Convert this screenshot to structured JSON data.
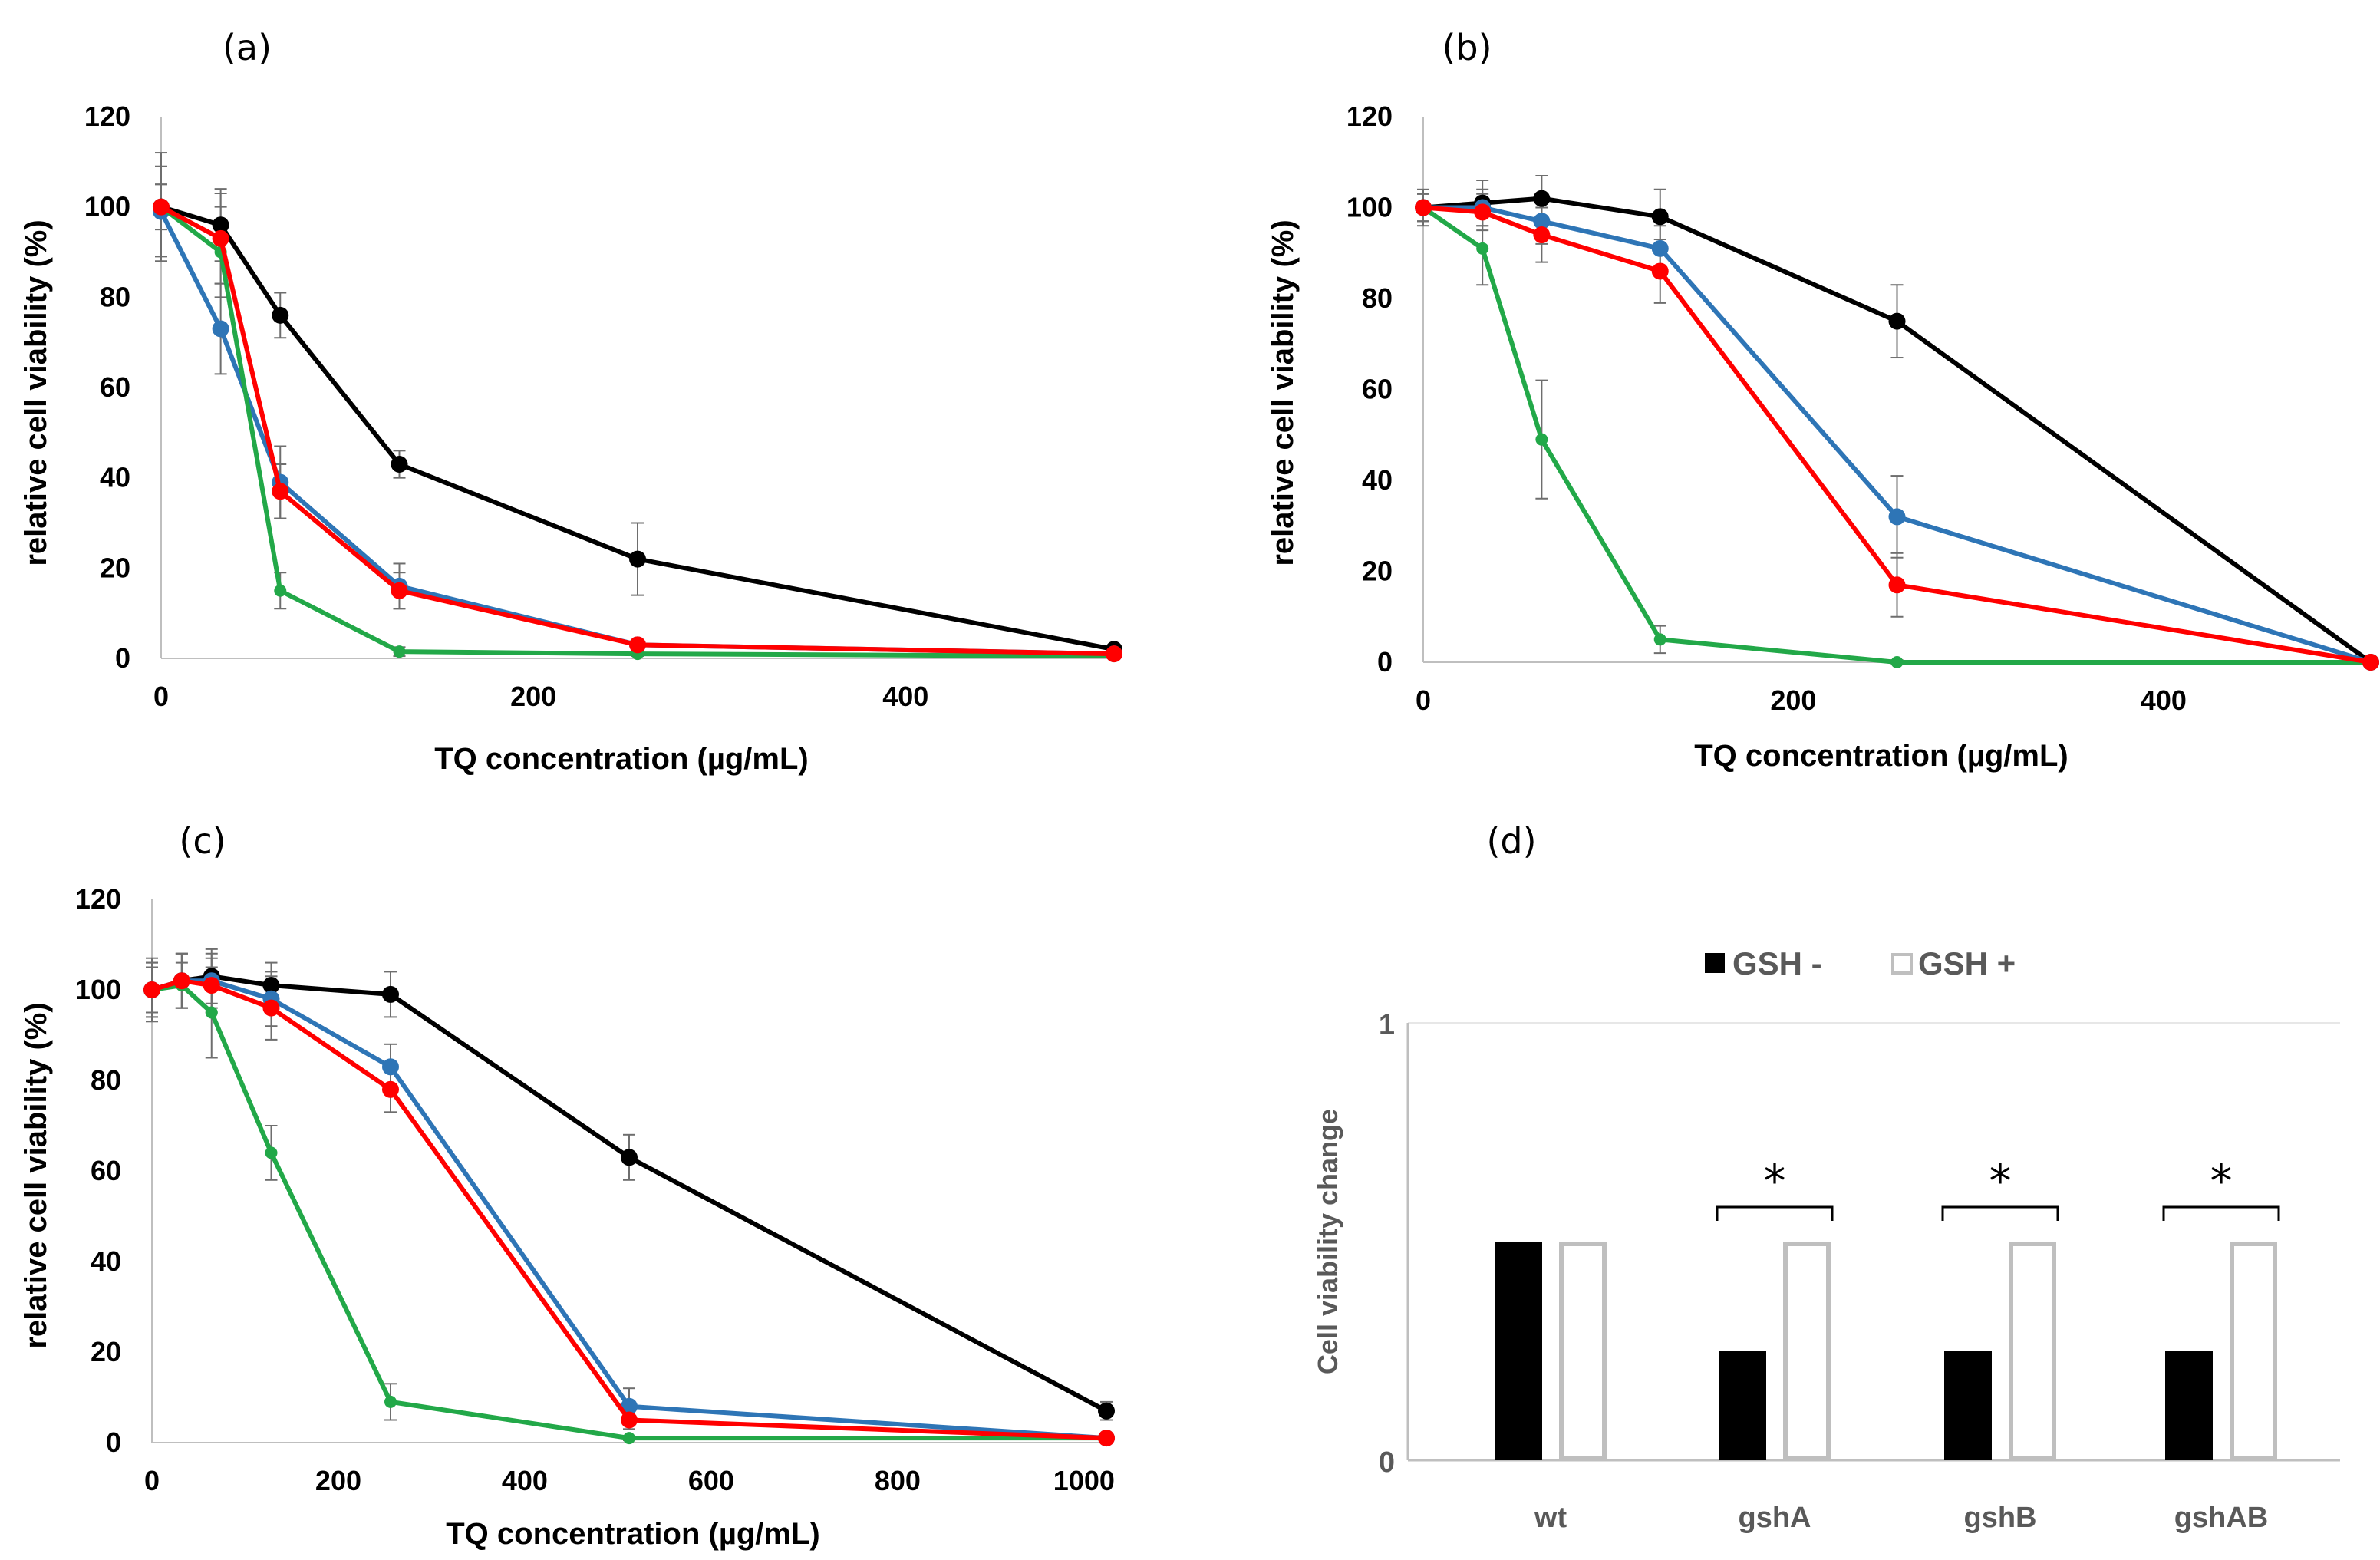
{
  "chart_data": [
    {
      "type": "line",
      "panel": "(a)",
      "title": "",
      "xlabel": "TQ concentration  (µg/mL)",
      "ylabel": "relative cell viability (%)",
      "xlim": [
        0,
        512
      ],
      "ylim": [
        0,
        120
      ],
      "xticks": [
        0,
        200,
        400
      ],
      "yticks": [
        0,
        20,
        40,
        60,
        80,
        100,
        120
      ],
      "grid": false,
      "series": [
        {
          "name": "black",
          "color": "#000000",
          "x": [
            0,
            32,
            64,
            128,
            256,
            512
          ],
          "values": [
            100,
            96,
            76,
            43,
            22,
            2
          ],
          "err": [
            12,
            8,
            5,
            3,
            8,
            1
          ]
        },
        {
          "name": "blue",
          "color": "#2E75B6",
          "x": [
            0,
            32,
            64,
            128,
            256,
            512
          ],
          "values": [
            99,
            73,
            39,
            16,
            3,
            1
          ],
          "err": [
            10,
            10,
            8,
            5,
            1,
            1
          ]
        },
        {
          "name": "green",
          "color": "#22A848",
          "x": [
            0,
            32,
            64,
            128,
            256,
            512
          ],
          "values": [
            100,
            90,
            15,
            1.5,
            1,
            0.5
          ],
          "err": [
            5,
            10,
            4,
            1,
            0.5,
            0.5
          ]
        },
        {
          "name": "red",
          "color": "#FF0000",
          "x": [
            0,
            32,
            64,
            128,
            256,
            512
          ],
          "values": [
            100,
            93,
            37,
            15,
            3,
            1
          ],
          "err": [
            5,
            10,
            6,
            4,
            1,
            1
          ]
        }
      ]
    },
    {
      "type": "line",
      "panel": "(b)",
      "title": "",
      "xlabel": "TQ concentration  (µg/mL)",
      "ylabel": "relative cell viability (%)",
      "xlim": [
        0,
        512
      ],
      "ylim": [
        0,
        120
      ],
      "xticks": [
        0,
        200,
        400
      ],
      "yticks": [
        0,
        20,
        40,
        60,
        80,
        100,
        120
      ],
      "grid": false,
      "series": [
        {
          "name": "black",
          "color": "#000000",
          "x": [
            0,
            32,
            64,
            128,
            256,
            512
          ],
          "values": [
            100,
            101,
            102,
            98,
            75,
            0
          ],
          "err": [
            4,
            5,
            5,
            6,
            8,
            0.5
          ]
        },
        {
          "name": "blue",
          "color": "#2E75B6",
          "x": [
            0,
            32,
            64,
            128,
            256,
            512
          ],
          "values": [
            100,
            100,
            97,
            91,
            32,
            0
          ],
          "err": [
            3,
            4,
            5,
            5,
            9,
            0.5
          ]
        },
        {
          "name": "green",
          "color": "#22A848",
          "x": [
            0,
            32,
            64,
            128,
            256,
            512
          ],
          "values": [
            100,
            91,
            49,
            5,
            0,
            0
          ],
          "err": [
            3,
            8,
            13,
            3,
            0.5,
            0.5
          ]
        },
        {
          "name": "red",
          "color": "#FF0000",
          "x": [
            0,
            32,
            64,
            128,
            256,
            512
          ],
          "values": [
            100,
            99,
            94,
            86,
            17,
            0
          ],
          "err": [
            3,
            4,
            6,
            7,
            7,
            0.5
          ]
        }
      ]
    },
    {
      "type": "line",
      "panel": "(c)",
      "title": "",
      "xlabel": "TQ concentration  (µg/mL)",
      "ylabel": "relative cell viability (%)",
      "xlim": [
        0,
        1024
      ],
      "ylim": [
        0,
        120
      ],
      "xticks": [
        0,
        200,
        400,
        600,
        800,
        1000
      ],
      "yticks": [
        0,
        20,
        40,
        60,
        80,
        100,
        120
      ],
      "grid": false,
      "series": [
        {
          "name": "black",
          "color": "#000000",
          "x": [
            0,
            32,
            64,
            128,
            256,
            512,
            1024
          ],
          "values": [
            100,
            102,
            103,
            101,
            99,
            63,
            7
          ],
          "err": [
            7,
            6,
            6,
            5,
            5,
            5,
            2
          ]
        },
        {
          "name": "blue",
          "color": "#2E75B6",
          "x": [
            0,
            32,
            64,
            128,
            256,
            512,
            1024
          ],
          "values": [
            100,
            102,
            102,
            98,
            83,
            8,
            1
          ],
          "err": [
            6,
            6,
            6,
            6,
            5,
            4,
            0.5
          ]
        },
        {
          "name": "green",
          "color": "#22A848",
          "x": [
            0,
            32,
            64,
            128,
            256,
            512,
            1024
          ],
          "values": [
            100,
            101,
            95,
            64,
            9,
            1,
            1
          ],
          "err": [
            5,
            5,
            10,
            6,
            4,
            0.5,
            0.5
          ]
        },
        {
          "name": "red",
          "color": "#FF0000",
          "x": [
            0,
            32,
            64,
            128,
            256,
            512,
            1024
          ],
          "values": [
            100,
            102,
            101,
            96,
            78,
            5,
            1
          ],
          "err": [
            6,
            6,
            6,
            7,
            5,
            2,
            0.5
          ]
        }
      ]
    },
    {
      "type": "bar",
      "panel": "(d)",
      "title": "",
      "xlabel": "",
      "ylabel": "Cell viability change",
      "ylim": [
        0,
        1
      ],
      "yticks": [
        0,
        1
      ],
      "categories": [
        "wt",
        "gshA",
        "gshB",
        "gshAB"
      ],
      "series": [
        {
          "name": "GSH -",
          "style": "filled",
          "color": "#000000",
          "values": [
            0.5,
            0.25,
            0.25,
            0.25
          ]
        },
        {
          "name": "GSH +",
          "style": "outline",
          "color": "#BFBFBF",
          "values": [
            0.5,
            0.5,
            0.5,
            0.5
          ]
        }
      ],
      "significance": {
        "marker": "*",
        "categories": [
          "gshA",
          "gshB",
          "gshAB"
        ]
      },
      "legend_position": "top-center"
    }
  ]
}
